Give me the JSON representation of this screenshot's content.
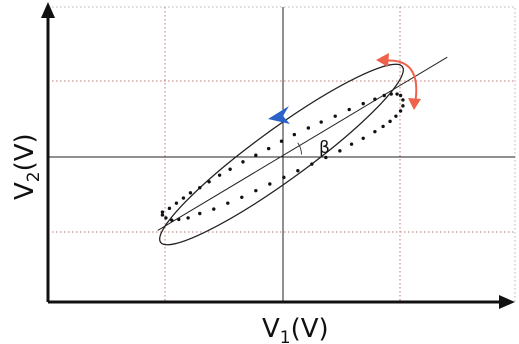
{
  "chart_data": {
    "type": "scatter",
    "title": "",
    "xlabel": {
      "base": "V",
      "sub": "1",
      "unit": "(V)"
    },
    "ylabel": {
      "base": "V",
      "sub": "2",
      "unit": "(V)"
    },
    "grid": true,
    "xlim": [
      -2,
      2
    ],
    "ylim": [
      -2,
      2
    ],
    "tick_labels": "none",
    "ellipse_fit": {
      "center": [
        0,
        0
      ],
      "semi_major": 1.28,
      "semi_minor": 0.22,
      "tilt_deg": 36
    },
    "axis_line": {
      "from": [
        -1.06,
        -1.03
      ],
      "to": [
        1.42,
        1.32
      ]
    },
    "angle_label": "β",
    "points": [
      [
        -1.02,
        -0.78
      ],
      [
        -0.96,
        -0.73
      ],
      [
        -0.9,
        -0.66
      ],
      [
        -0.84,
        -0.59
      ],
      [
        -0.78,
        -0.52
      ],
      [
        -0.7,
        -0.45
      ],
      [
        -0.62,
        -0.37
      ],
      [
        -0.53,
        -0.28
      ],
      [
        -0.44,
        -0.2
      ],
      [
        -0.33,
        -0.1
      ],
      [
        -0.22,
        -0.01
      ],
      [
        -0.11,
        0.08
      ],
      [
        0.0,
        0.18
      ],
      [
        0.11,
        0.27
      ],
      [
        0.23,
        0.36
      ],
      [
        0.34,
        0.44
      ],
      [
        0.46,
        0.52
      ],
      [
        0.58,
        0.61
      ],
      [
        0.7,
        0.69
      ],
      [
        0.8,
        0.75
      ],
      [
        0.88,
        0.8
      ],
      [
        0.94,
        0.82
      ],
      [
        0.99,
        0.82
      ],
      [
        1.02,
        0.8
      ],
      [
        1.04,
        0.74
      ],
      [
        1.04,
        0.66
      ],
      [
        1.02,
        0.59
      ],
      [
        0.98,
        0.52
      ],
      [
        0.93,
        0.45
      ],
      [
        0.87,
        0.38
      ],
      [
        0.8,
        0.31
      ],
      [
        0.7,
        0.22
      ],
      [
        0.6,
        0.14
      ],
      [
        0.5,
        0.05
      ],
      [
        0.38,
        -0.04
      ],
      [
        0.26,
        -0.13
      ],
      [
        0.14,
        -0.22
      ],
      [
        0.02,
        -0.31
      ],
      [
        -0.1,
        -0.4
      ],
      [
        -0.22,
        -0.49
      ],
      [
        -0.34,
        -0.58
      ],
      [
        -0.46,
        -0.66
      ],
      [
        -0.58,
        -0.74
      ],
      [
        -0.7,
        -0.8
      ],
      [
        -0.8,
        -0.86
      ],
      [
        -0.88,
        -0.88
      ],
      [
        -0.94,
        -0.89
      ],
      [
        -0.99,
        -0.86
      ],
      [
        -1.02,
        -0.82
      ]
    ],
    "direction_arrow_color": "#2a62c9",
    "rotation_arrow_color": "#f0614b"
  }
}
